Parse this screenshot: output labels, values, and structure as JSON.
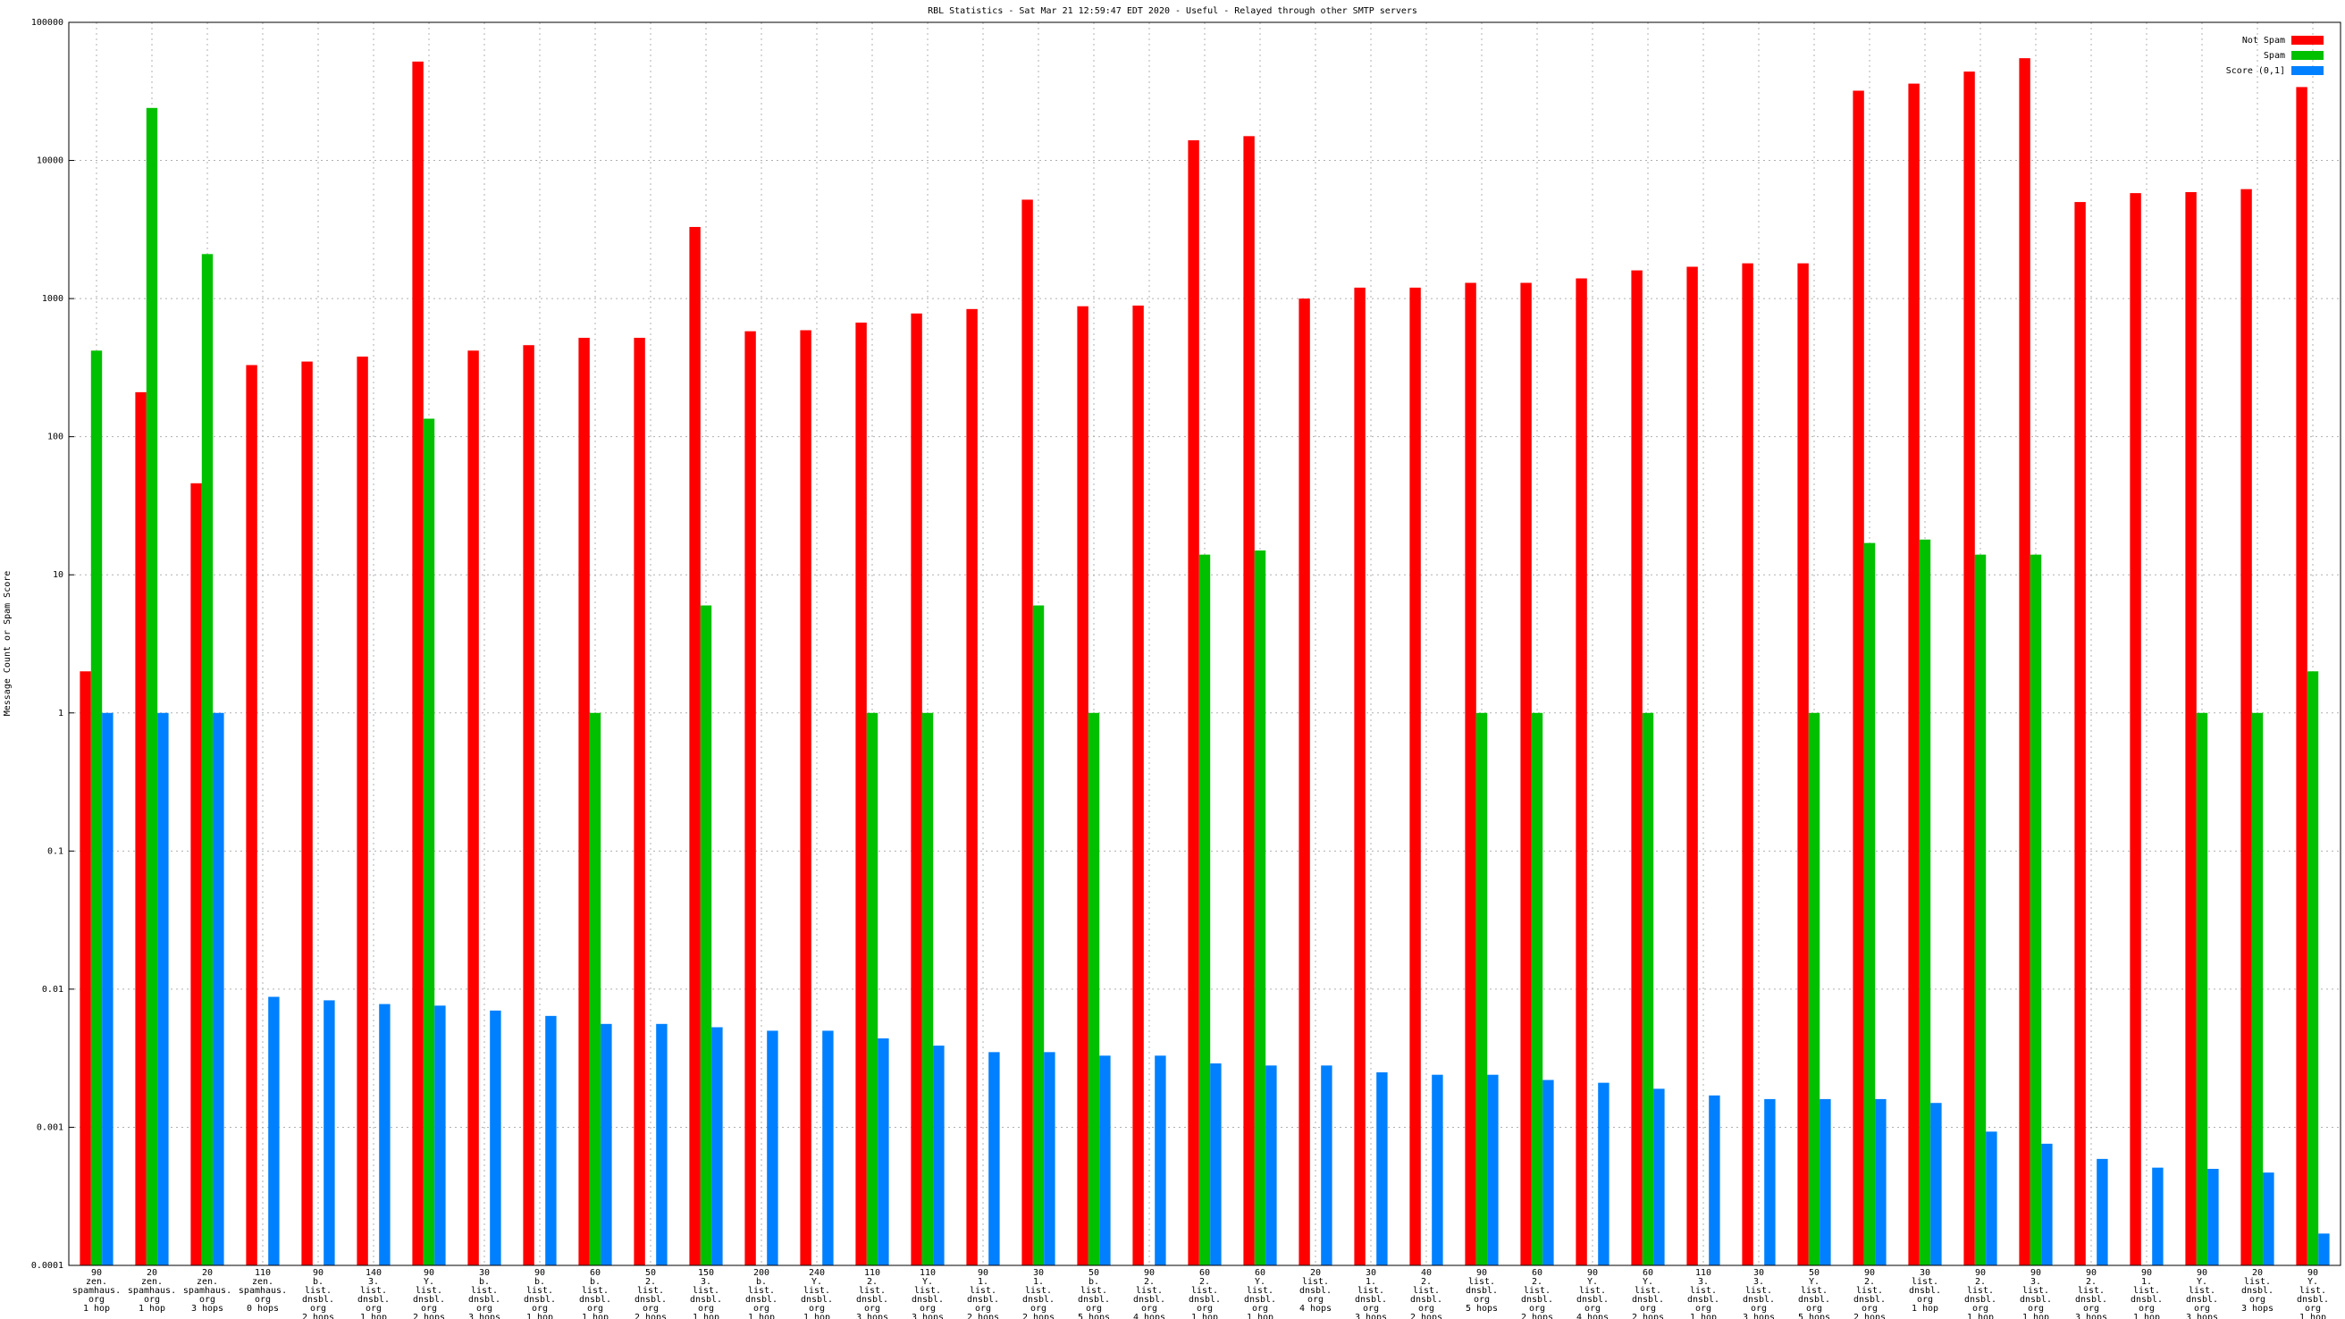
{
  "chart_data": {
    "type": "bar",
    "title": "RBL Statistics - Sat Mar 21 12:59:47 EDT 2020 - Useful - Relayed through other SMTP servers",
    "y_label": "Message Count or Spam Score",
    "log_y": true,
    "grid": true,
    "legend": "top-right",
    "ylim": [
      0.0001,
      100000
    ],
    "yticks": [
      0.0001,
      0.001,
      0.01,
      0.1,
      1,
      10,
      100,
      1000,
      10000,
      100000
    ],
    "categories": [
      [
        "90",
        "zen.",
        "spamhaus.",
        "org",
        "1 hop"
      ],
      [
        "20",
        "zen.",
        "spamhaus.",
        "org",
        "1 hop"
      ],
      [
        "20",
        "zen.",
        "spamhaus.",
        "org",
        "3 hops"
      ],
      [
        "110",
        "zen.",
        "spamhaus.",
        "org",
        "0 hops"
      ],
      [
        "90",
        "b.",
        "list.",
        "dnsbl.",
        "org",
        "2 hops"
      ],
      [
        "140",
        "3.",
        "list.",
        "dnsbl.",
        "org",
        "1 hop"
      ],
      [
        "90",
        "Y.",
        "list.",
        "dnsbl.",
        "org",
        "2 hops"
      ],
      [
        "30",
        "b.",
        "list.",
        "dnsbl.",
        "org",
        "3 hops"
      ],
      [
        "90",
        "b.",
        "list.",
        "dnsbl.",
        "org",
        "1 hop"
      ],
      [
        "60",
        "b.",
        "list.",
        "dnsbl.",
        "org",
        "1 hop"
      ],
      [
        "50",
        "2.",
        "list.",
        "dnsbl.",
        "org",
        "2 hops"
      ],
      [
        "150",
        "3.",
        "list.",
        "dnsbl.",
        "org",
        "1 hop"
      ],
      [
        "200",
        "b.",
        "list.",
        "dnsbl.",
        "org",
        "1 hop"
      ],
      [
        "240",
        "Y.",
        "list.",
        "dnsbl.",
        "org",
        "1 hop"
      ],
      [
        "110",
        "2.",
        "list.",
        "dnsbl.",
        "org",
        "3 hops"
      ],
      [
        "110",
        "Y.",
        "list.",
        "dnsbl.",
        "org",
        "3 hops"
      ],
      [
        "90",
        "1.",
        "list.",
        "dnsbl.",
        "org",
        "2 hops"
      ],
      [
        "30",
        "1.",
        "list.",
        "dnsbl.",
        "org",
        "2 hops"
      ],
      [
        "50",
        "b.",
        "list.",
        "dnsbl.",
        "org",
        "5 hops"
      ],
      [
        "90",
        "2.",
        "list.",
        "dnsbl.",
        "org",
        "4 hops"
      ],
      [
        "60",
        "2.",
        "list.",
        "dnsbl.",
        "org",
        "1 hop"
      ],
      [
        "60",
        "Y.",
        "list.",
        "dnsbl.",
        "org",
        "1 hop"
      ],
      [
        "20",
        "list.",
        "dnsbl.",
        "org",
        "4 hops"
      ],
      [
        "30",
        "1.",
        "list.",
        "dnsbl.",
        "org",
        "3 hops"
      ],
      [
        "40",
        "2.",
        "list.",
        "dnsbl.",
        "org",
        "2 hops"
      ],
      [
        "90",
        "list.",
        "dnsbl.",
        "org",
        "5 hops"
      ],
      [
        "60",
        "2.",
        "list.",
        "dnsbl.",
        "org",
        "2 hops"
      ],
      [
        "90",
        "Y.",
        "list.",
        "dnsbl.",
        "org",
        "4 hops"
      ],
      [
        "60",
        "Y.",
        "list.",
        "dnsbl.",
        "org",
        "2 hops"
      ],
      [
        "110",
        "3.",
        "list.",
        "dnsbl.",
        "org",
        "1 hop"
      ],
      [
        "30",
        "3.",
        "list.",
        "dnsbl.",
        "org",
        "3 hops"
      ],
      [
        "50",
        "Y.",
        "list.",
        "dnsbl.",
        "org",
        "5 hops"
      ],
      [
        "90",
        "2.",
        "list.",
        "dnsbl.",
        "org",
        "2 hops"
      ],
      [
        "30",
        "list.",
        "dnsbl.",
        "org",
        "1 hop"
      ],
      [
        "90",
        "2.",
        "list.",
        "dnsbl.",
        "org",
        "1 hop"
      ],
      [
        "90",
        "3.",
        "list.",
        "dnsbl.",
        "org",
        "1 hop"
      ],
      [
        "90",
        "2.",
        "list.",
        "dnsbl.",
        "org",
        "3 hops"
      ],
      [
        "90",
        "1.",
        "list.",
        "dnsbl.",
        "org",
        "1 hop"
      ],
      [
        "90",
        "Y.",
        "list.",
        "dnsbl.",
        "org",
        "3 hops"
      ],
      [
        "20",
        "list.",
        "dnsbl.",
        "org",
        "3 hops"
      ],
      [
        "90",
        "Y.",
        "list.",
        "dnsbl.",
        "org",
        "1 hop"
      ]
    ],
    "series": [
      {
        "name": "Not Spam",
        "color": "#ff0000",
        "values": [
          2,
          210,
          46,
          330,
          350,
          380,
          52000,
          420,
          460,
          520,
          520,
          3300,
          580,
          590,
          670,
          780,
          840,
          5200,
          880,
          890,
          14000,
          15000,
          1000,
          1200,
          1200,
          1300,
          1300,
          1400,
          1600,
          1700,
          1800,
          1800,
          32000,
          36000,
          44000,
          55000,
          5000,
          5800,
          5900,
          6200,
          34000
        ]
      },
      {
        "name": "Spam",
        "color": "#00c000",
        "values": [
          420,
          24000,
          2100,
          null,
          null,
          null,
          135,
          null,
          null,
          1,
          null,
          6,
          null,
          null,
          1,
          1,
          null,
          6,
          1,
          null,
          14,
          15,
          null,
          null,
          null,
          1,
          1,
          null,
          1,
          null,
          null,
          1,
          17,
          18,
          14,
          14,
          null,
          null,
          1,
          1,
          2
        ]
      },
      {
        "name": "Score (0,1]",
        "color": "#0080ff",
        "values": [
          1,
          1,
          1,
          0.0088,
          0.0083,
          0.0078,
          0.0076,
          0.007,
          0.0064,
          0.0056,
          0.0056,
          0.0053,
          0.005,
          0.005,
          0.0044,
          0.0039,
          0.0035,
          0.0035,
          0.0033,
          0.0033,
          0.0029,
          0.0028,
          0.0028,
          0.0025,
          0.0024,
          0.0024,
          0.0022,
          0.0021,
          0.0019,
          0.0017,
          0.0016,
          0.0016,
          0.0016,
          0.0015,
          0.00093,
          0.00076,
          0.00059,
          0.00051,
          0.0005,
          0.00047,
          0.00017
        ]
      }
    ]
  }
}
